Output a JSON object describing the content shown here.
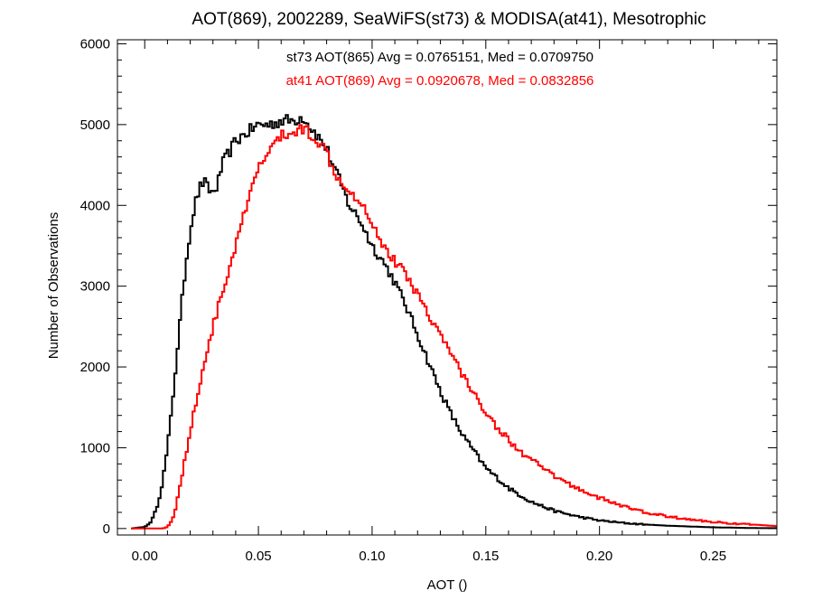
{
  "chart_data": {
    "type": "line",
    "title": "AOT(869), 2002289, SeaWiFS(st73) & MODISA(at41), Mesotrophic",
    "xlabel": "AOT ()",
    "ylabel": "Number of Observations",
    "xlim": [
      -0.012,
      0.278
    ],
    "ylim": [
      -80,
      6050
    ],
    "xticks": [
      0.0,
      0.05,
      0.1,
      0.15,
      0.2,
      0.25
    ],
    "xtick_labels": [
      "0.00",
      "0.05",
      "0.10",
      "0.15",
      "0.20",
      "0.25"
    ],
    "yticks": [
      0,
      1000,
      2000,
      3000,
      4000,
      5000,
      6000
    ],
    "ytick_labels": [
      "0",
      "1000",
      "2000",
      "3000",
      "4000",
      "5000",
      "6000"
    ],
    "grid": false,
    "legend_placement": "top-center",
    "series": [
      {
        "name": "st73",
        "legend_text": "st73 AOT(865) Avg = 0.0765151, Med = 0.0709750",
        "color": "#000000",
        "x": [
          -0.006,
          0.0,
          0.002,
          0.004,
          0.006,
          0.008,
          0.01,
          0.012,
          0.014,
          0.016,
          0.018,
          0.02,
          0.022,
          0.024,
          0.026,
          0.028,
          0.03,
          0.032,
          0.034,
          0.036,
          0.04,
          0.045,
          0.05,
          0.055,
          0.06,
          0.065,
          0.07,
          0.072,
          0.075,
          0.08,
          0.085,
          0.09,
          0.095,
          0.1,
          0.105,
          0.11,
          0.115,
          0.12,
          0.125,
          0.13,
          0.135,
          0.14,
          0.145,
          0.15,
          0.16,
          0.17,
          0.18,
          0.19,
          0.2,
          0.21,
          0.22,
          0.23,
          0.24,
          0.25,
          0.26,
          0.27,
          0.278
        ],
        "y": [
          0,
          20,
          60,
          150,
          330,
          600,
          1000,
          1500,
          2100,
          2700,
          3250,
          3700,
          4000,
          4200,
          4300,
          4200,
          4150,
          4250,
          4500,
          4600,
          4800,
          4900,
          5000,
          5000,
          5050,
          5050,
          5100,
          5000,
          4900,
          4700,
          4350,
          4000,
          3800,
          3500,
          3300,
          3050,
          2750,
          2400,
          2050,
          1700,
          1400,
          1150,
          950,
          750,
          500,
          330,
          220,
          150,
          100,
          70,
          50,
          35,
          25,
          15,
          10,
          5,
          5
        ]
      },
      {
        "name": "at41",
        "legend_text": "at41 AOT(869) Avg = 0.0920678, Med = 0.0832856",
        "color": "#ff0000",
        "x": [
          -0.006,
          0.008,
          0.01,
          0.012,
          0.014,
          0.016,
          0.018,
          0.02,
          0.025,
          0.03,
          0.035,
          0.04,
          0.045,
          0.05,
          0.055,
          0.06,
          0.065,
          0.07,
          0.075,
          0.08,
          0.085,
          0.09,
          0.095,
          0.1,
          0.105,
          0.11,
          0.115,
          0.12,
          0.125,
          0.13,
          0.135,
          0.14,
          0.145,
          0.15,
          0.155,
          0.16,
          0.165,
          0.17,
          0.18,
          0.19,
          0.2,
          0.21,
          0.22,
          0.23,
          0.24,
          0.25,
          0.26,
          0.27,
          0.278
        ],
        "y": [
          0,
          0,
          20,
          100,
          300,
          600,
          900,
          1200,
          1900,
          2500,
          3000,
          3500,
          4000,
          4450,
          4700,
          4850,
          4900,
          4950,
          4850,
          4650,
          4350,
          4200,
          4050,
          3800,
          3500,
          3300,
          3150,
          2900,
          2650,
          2400,
          2150,
          1900,
          1650,
          1450,
          1250,
          1100,
          950,
          850,
          650,
          500,
          380,
          280,
          200,
          150,
          110,
          80,
          60,
          45,
          30
        ]
      }
    ]
  }
}
